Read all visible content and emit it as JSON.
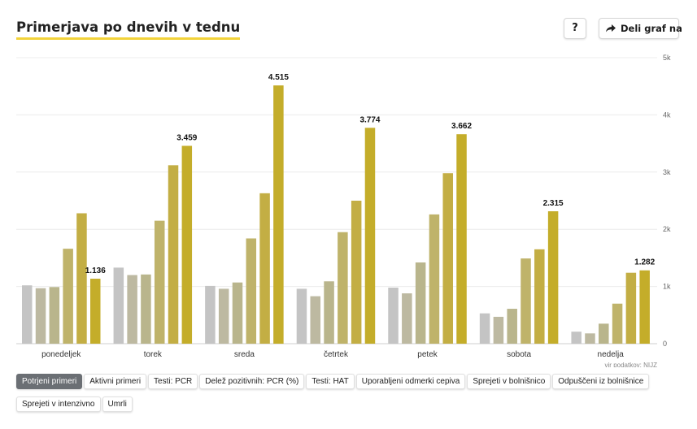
{
  "header": {
    "title": "Primerjava po dnevih v tednu",
    "help_label": "?",
    "share_label": "Deli graf na",
    "share_icon": "share-arrow-icon"
  },
  "colors": {
    "accent_underline": "#f2d33a",
    "series": [
      "#c4c4c4",
      "#bdb9a1",
      "#b9b58c",
      "#bfb36a",
      "#c3ae44",
      "#c4ad2a"
    ]
  },
  "chart_data": {
    "type": "bar",
    "categories": [
      "ponedeljek",
      "torek",
      "sreda",
      "četrtek",
      "petek",
      "sobota",
      "nedelja"
    ],
    "series": [
      {
        "values": [
          1020,
          1330,
          1010,
          960,
          980,
          530,
          210
        ]
      },
      {
        "values": [
          970,
          1200,
          960,
          830,
          880,
          470,
          180
        ]
      },
      {
        "values": [
          990,
          1210,
          1070,
          1090,
          1420,
          610,
          350
        ]
      },
      {
        "values": [
          1660,
          2150,
          1840,
          1950,
          2260,
          1490,
          700
        ]
      },
      {
        "values": [
          2280,
          3120,
          2630,
          2500,
          2980,
          1650,
          1240
        ]
      },
      {
        "values": [
          1136,
          3459,
          4515,
          3774,
          3662,
          2315,
          1282
        ]
      }
    ],
    "data_labels": [
      "1.136",
      "3.459",
      "4.515",
      "3.774",
      "3.662",
      "2.315",
      "1.282"
    ],
    "y_ticks": [
      "0",
      "1k",
      "2k",
      "3k",
      "4k",
      "5k"
    ],
    "ylim": [
      0,
      5000
    ],
    "grid": true,
    "source": "vir podatkov: NIJZ"
  },
  "tabs": [
    {
      "label": "Potrjeni primeri",
      "active": true
    },
    {
      "label": "Aktivni primeri",
      "active": false
    },
    {
      "label": "Testi: PCR",
      "active": false
    },
    {
      "label": "Delež pozitivnih: PCR (%)",
      "active": false
    },
    {
      "label": "Testi: HAT",
      "active": false
    },
    {
      "label": "Uporabljeni odmerki cepiva",
      "active": false
    },
    {
      "label": "Sprejeti v bolnišnico",
      "active": false
    },
    {
      "label": "Odpuščeni iz bolnišnice",
      "active": false
    },
    {
      "label": "Sprejeti v intenzivno",
      "active": false
    },
    {
      "label": "Umrli",
      "active": false
    }
  ]
}
